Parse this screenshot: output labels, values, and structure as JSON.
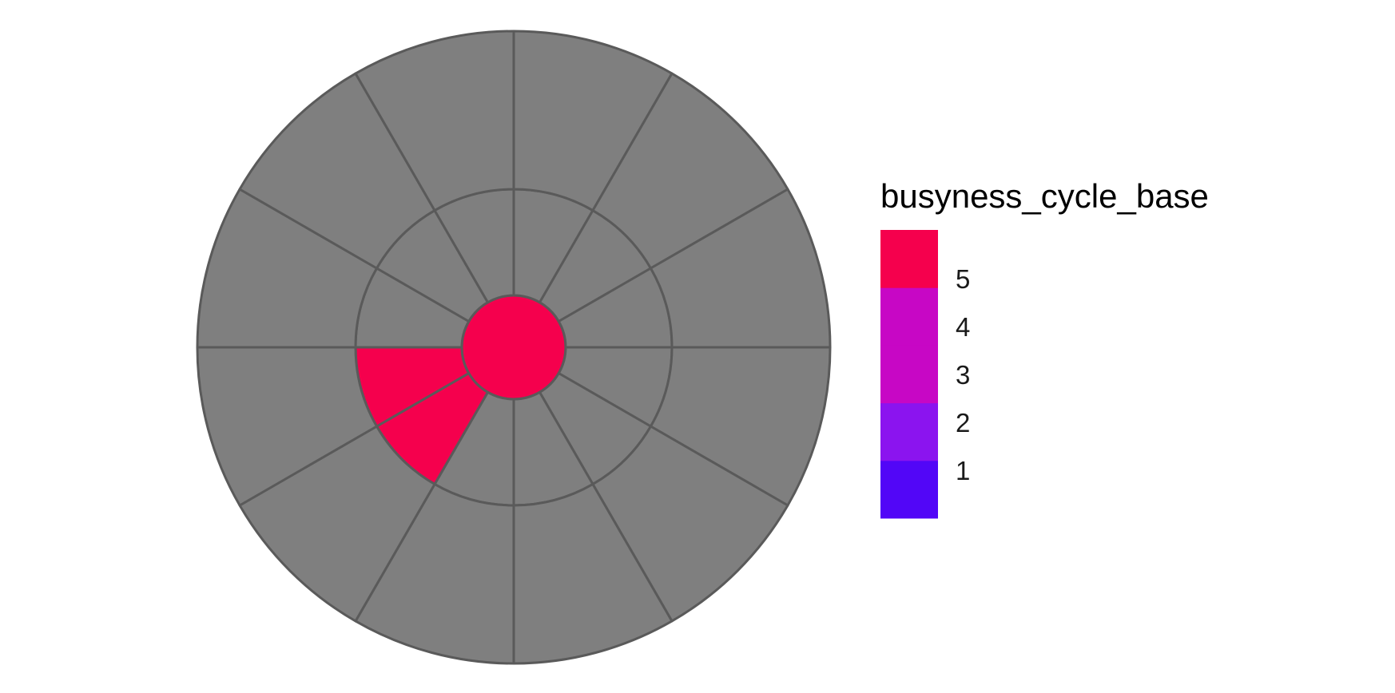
{
  "chart_data": {
    "type": "heatmap",
    "subtype": "polar-grid",
    "title": "",
    "rings": [
      "inner",
      "middle",
      "outer"
    ],
    "sectors": 12,
    "cells": [
      {
        "ring": 0,
        "sector": 0,
        "value": 5
      },
      {
        "ring": 1,
        "sector": 7,
        "value": 5
      },
      {
        "ring": 1,
        "sector": 8,
        "value": 5
      }
    ],
    "missing_color": "#7f7f7f",
    "border_color": "#5a5a5a",
    "legend": {
      "title": "busyness_cycle_base",
      "labels": [
        "5",
        "4",
        "3",
        "2",
        "1"
      ],
      "colors": {
        "1": "#5206f7",
        "2": "#8b14ef",
        "3": "#c707c5",
        "4": "#c707c5",
        "5": "#f5004d"
      },
      "range": [
        0.5,
        5.5
      ],
      "placement": "right"
    }
  }
}
